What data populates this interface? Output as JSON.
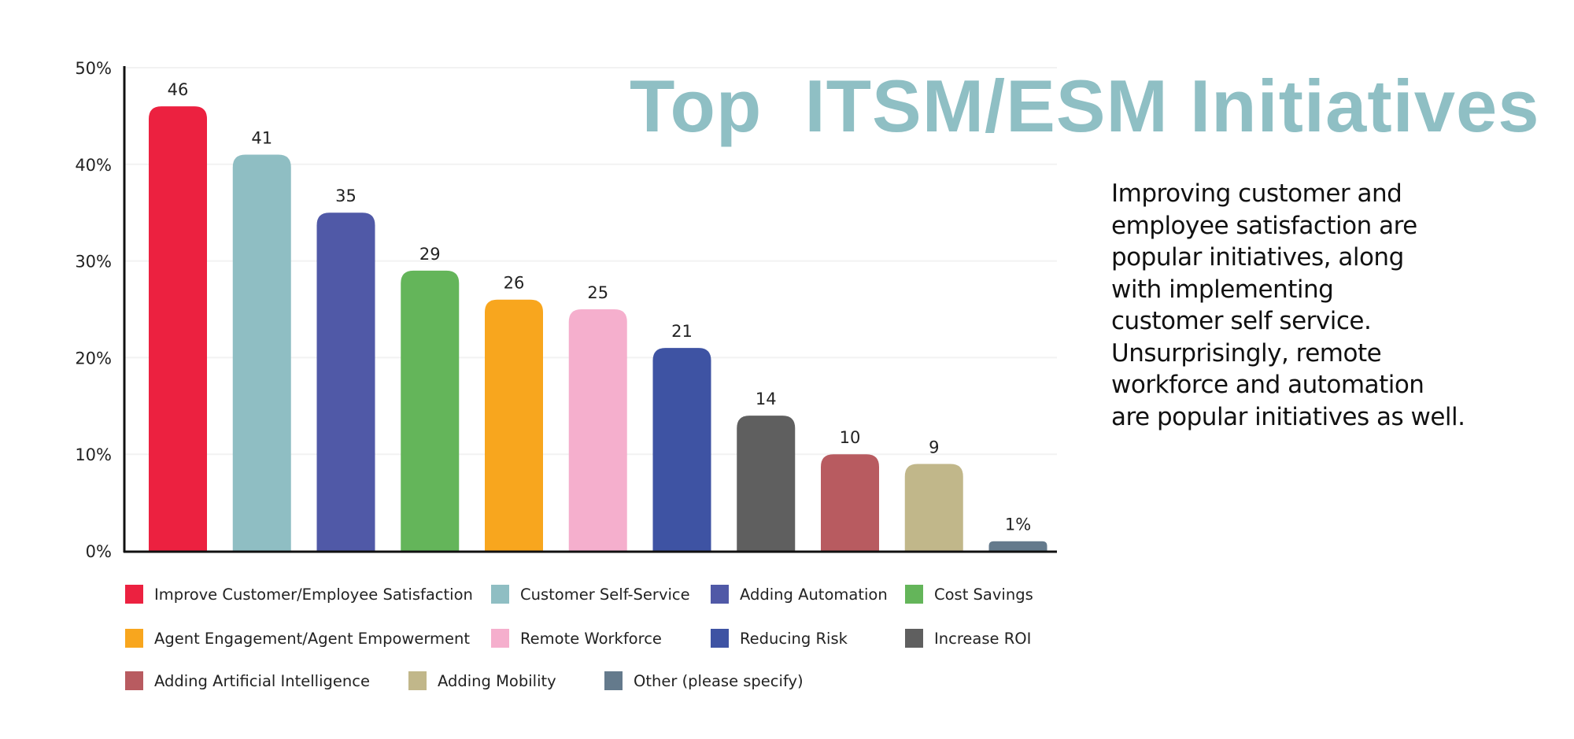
{
  "title": "Top  ITSM/ESM Initiatives",
  "description_lines": [
    "Improving customer and",
    "employee satisfaction are",
    "popular initiatives, along",
    "with implementing",
    "customer self service.",
    "Unsurprisingly, remote",
    "workforce and automation",
    "are popular initiatives as well."
  ],
  "chart_data": {
    "type": "bar",
    "ylim": [
      0,
      50
    ],
    "yticks": [
      "0%",
      "10%",
      "20%",
      "30%",
      "40%",
      "50%"
    ],
    "grid": true,
    "legend_placement": "bottom",
    "categories": [
      "Improve Customer/Employee Satisfaction",
      "Customer Self-Service",
      "Adding Automation",
      "Cost Savings",
      "Agent Engagement/Agent Empowerment",
      "Remote Workforce",
      "Reducing Risk",
      "Increase ROI",
      "Adding Artificial Intelligence",
      "Adding Mobility",
      "Other (please specify)"
    ],
    "values": [
      46,
      41,
      35,
      29,
      26,
      25,
      21,
      14,
      10,
      9,
      1
    ],
    "data_labels": [
      "46",
      "41",
      "35",
      "29",
      "26",
      "25",
      "21",
      "14",
      "10",
      "9",
      "1%"
    ],
    "colors": [
      "#ec2140",
      "#8fbec3",
      "#5059a7",
      "#64b55a",
      "#f8a61e",
      "#f5afcd",
      "#3e53a3",
      "#5f5f5f",
      "#b85b60",
      "#c1b78a",
      "#647a8c"
    ]
  }
}
